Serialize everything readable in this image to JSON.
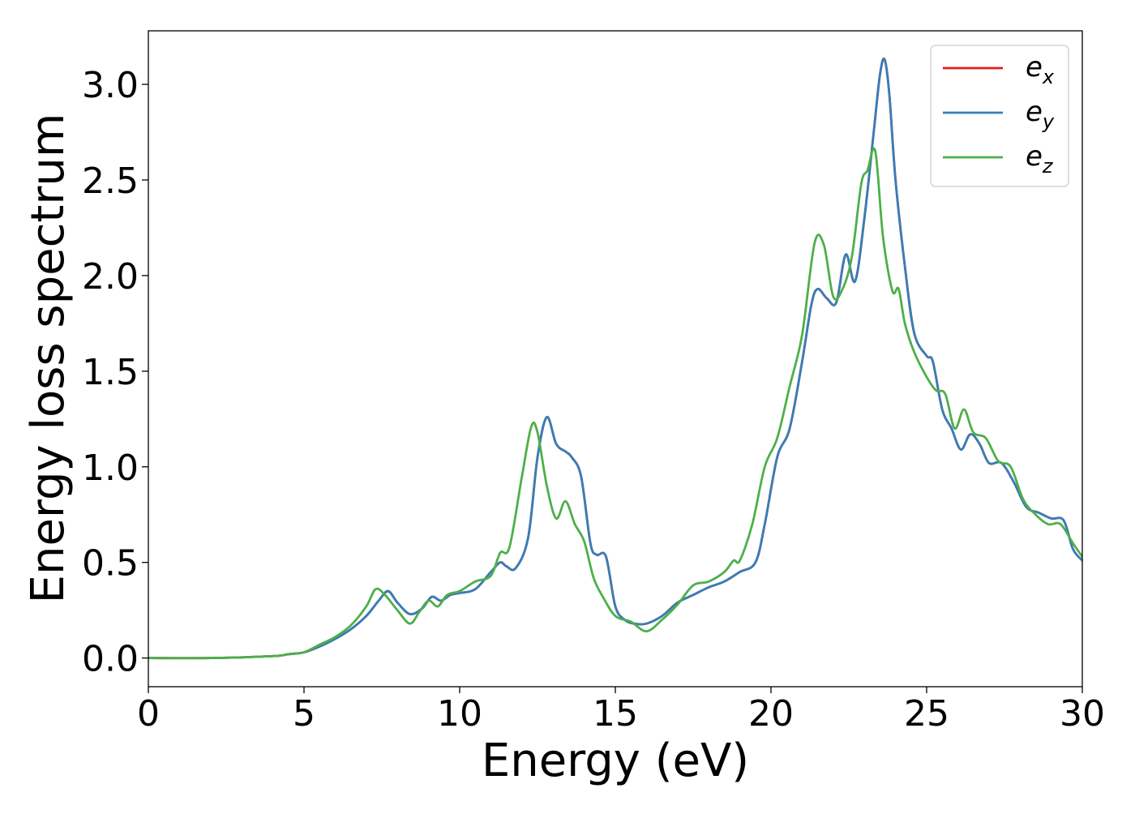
{
  "chart_data": {
    "type": "line",
    "title": "",
    "xlabel": "Energy (eV)",
    "ylabel": "Energy loss spectrum",
    "xlim": [
      0,
      30
    ],
    "ylim": [
      -0.15,
      3.28
    ],
    "xticks": [
      0,
      5,
      10,
      15,
      20,
      25,
      30
    ],
    "yticks": [
      0.0,
      0.5,
      1.0,
      1.5,
      2.0,
      2.5,
      3.0
    ],
    "xtick_labels": [
      "0",
      "5",
      "10",
      "15",
      "20",
      "25",
      "30"
    ],
    "ytick_labels": [
      "0.0",
      "0.5",
      "1.0",
      "1.5",
      "2.0",
      "2.5",
      "3.0"
    ],
    "grid": false,
    "legend_position": "top-right",
    "series": [
      {
        "name": "e_x",
        "legend_base": "e",
        "legend_sub": "x",
        "color": "#e41a1c",
        "x": [
          0,
          2,
          4,
          4.5,
          5,
          5.5,
          6,
          6.5,
          7,
          7.4,
          7.7,
          8,
          8.4,
          8.8,
          9.1,
          9.4,
          9.7,
          10,
          10.5,
          11,
          11.3,
          11.5,
          11.8,
          12.2,
          12.5,
          12.8,
          13.1,
          13.4,
          13.6,
          13.9,
          14.2,
          14.4,
          14.7,
          15,
          15.3,
          15.6,
          16,
          16.5,
          17,
          17.5,
          18,
          18.5,
          19,
          19.5,
          19.8,
          20.2,
          20.6,
          21,
          21.3,
          21.5,
          21.8,
          22.1,
          22.4,
          22.7,
          23,
          23.3,
          23.5,
          23.65,
          23.8,
          24,
          24.3,
          24.6,
          25,
          25.2,
          25.5,
          25.8,
          26.1,
          26.4,
          26.7,
          27,
          27.4,
          27.8,
          28.2,
          28.6,
          29,
          29.4,
          29.7,
          30
        ],
        "values": [
          0.0,
          0.0,
          0.01,
          0.02,
          0.03,
          0.06,
          0.1,
          0.15,
          0.22,
          0.3,
          0.35,
          0.29,
          0.23,
          0.26,
          0.32,
          0.3,
          0.33,
          0.34,
          0.36,
          0.45,
          0.5,
          0.48,
          0.47,
          0.63,
          1.05,
          1.26,
          1.12,
          1.08,
          1.05,
          0.95,
          0.6,
          0.54,
          0.53,
          0.27,
          0.2,
          0.18,
          0.18,
          0.22,
          0.29,
          0.33,
          0.37,
          0.4,
          0.45,
          0.5,
          0.7,
          1.05,
          1.2,
          1.55,
          1.85,
          1.93,
          1.88,
          1.86,
          2.11,
          1.97,
          2.3,
          2.75,
          3.05,
          3.13,
          2.95,
          2.5,
          2.05,
          1.7,
          1.58,
          1.55,
          1.3,
          1.2,
          1.09,
          1.17,
          1.12,
          1.02,
          1.02,
          0.92,
          0.79,
          0.76,
          0.73,
          0.72,
          0.57,
          0.51
        ]
      },
      {
        "name": "e_y",
        "legend_base": "e",
        "legend_sub": "y",
        "color": "#377eb8",
        "x": [
          0,
          2,
          4,
          4.5,
          5,
          5.5,
          6,
          6.5,
          7,
          7.4,
          7.7,
          8,
          8.4,
          8.8,
          9.1,
          9.4,
          9.7,
          10,
          10.5,
          11,
          11.3,
          11.5,
          11.8,
          12.2,
          12.5,
          12.8,
          13.1,
          13.4,
          13.6,
          13.9,
          14.2,
          14.4,
          14.7,
          15,
          15.3,
          15.6,
          16,
          16.5,
          17,
          17.5,
          18,
          18.5,
          19,
          19.5,
          19.8,
          20.2,
          20.6,
          21,
          21.3,
          21.5,
          21.8,
          22.1,
          22.4,
          22.7,
          23,
          23.3,
          23.5,
          23.65,
          23.8,
          24,
          24.3,
          24.6,
          25,
          25.2,
          25.5,
          25.8,
          26.1,
          26.4,
          26.7,
          27,
          27.4,
          27.8,
          28.2,
          28.6,
          29,
          29.4,
          29.7,
          30
        ],
        "values": [
          0.0,
          0.0,
          0.01,
          0.02,
          0.03,
          0.06,
          0.1,
          0.15,
          0.22,
          0.3,
          0.35,
          0.29,
          0.23,
          0.26,
          0.32,
          0.3,
          0.33,
          0.34,
          0.36,
          0.45,
          0.5,
          0.48,
          0.47,
          0.63,
          1.05,
          1.26,
          1.12,
          1.08,
          1.05,
          0.95,
          0.6,
          0.54,
          0.53,
          0.27,
          0.2,
          0.18,
          0.18,
          0.22,
          0.29,
          0.33,
          0.37,
          0.4,
          0.45,
          0.5,
          0.7,
          1.05,
          1.2,
          1.55,
          1.85,
          1.93,
          1.88,
          1.86,
          2.11,
          1.97,
          2.3,
          2.75,
          3.05,
          3.13,
          2.95,
          2.5,
          2.05,
          1.7,
          1.58,
          1.55,
          1.3,
          1.2,
          1.09,
          1.17,
          1.12,
          1.02,
          1.02,
          0.92,
          0.79,
          0.76,
          0.73,
          0.72,
          0.57,
          0.51
        ]
      },
      {
        "name": "e_z",
        "legend_base": "e",
        "legend_sub": "z",
        "color": "#4daf4a",
        "x": [
          0,
          2,
          4,
          4.5,
          5,
          5.5,
          6,
          6.5,
          7,
          7.3,
          7.6,
          8,
          8.4,
          8.7,
          9,
          9.3,
          9.6,
          10,
          10.5,
          11,
          11.3,
          11.6,
          12,
          12.3,
          12.5,
          12.8,
          13.1,
          13.4,
          13.7,
          14,
          14.3,
          14.6,
          15,
          15.5,
          16,
          16.5,
          17,
          17.5,
          18,
          18.5,
          18.8,
          19,
          19.4,
          19.8,
          20.2,
          20.6,
          21,
          21.4,
          21.7,
          22,
          22.3,
          22.6,
          22.9,
          23.1,
          23.35,
          23.6,
          23.9,
          24.1,
          24.3,
          24.6,
          25,
          25.3,
          25.6,
          25.9,
          26.2,
          26.5,
          26.9,
          27.3,
          27.7,
          28.1,
          28.5,
          28.9,
          29.3,
          29.7,
          30
        ],
        "values": [
          0.0,
          0.0,
          0.01,
          0.02,
          0.03,
          0.07,
          0.11,
          0.17,
          0.27,
          0.36,
          0.33,
          0.25,
          0.18,
          0.24,
          0.3,
          0.27,
          0.33,
          0.35,
          0.4,
          0.43,
          0.55,
          0.58,
          0.95,
          1.21,
          1.18,
          0.9,
          0.73,
          0.82,
          0.7,
          0.61,
          0.42,
          0.32,
          0.22,
          0.19,
          0.14,
          0.2,
          0.28,
          0.38,
          0.4,
          0.45,
          0.51,
          0.51,
          0.7,
          1.0,
          1.15,
          1.42,
          1.69,
          2.17,
          2.16,
          1.89,
          1.93,
          2.1,
          2.48,
          2.55,
          2.65,
          2.2,
          1.92,
          1.93,
          1.75,
          1.6,
          1.47,
          1.4,
          1.38,
          1.2,
          1.3,
          1.18,
          1.15,
          1.03,
          1.0,
          0.83,
          0.75,
          0.7,
          0.7,
          0.6,
          0.53
        ]
      }
    ]
  }
}
